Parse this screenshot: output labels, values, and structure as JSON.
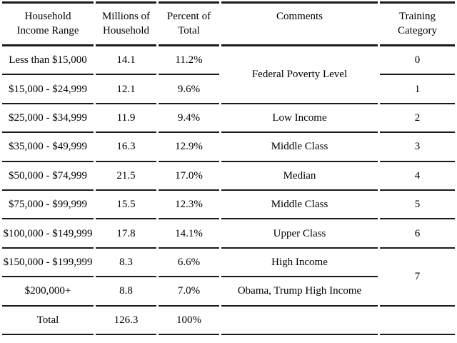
{
  "colors": {
    "line": "#1a1a1a",
    "text": "#000000",
    "background": "#ffffff"
  },
  "table": {
    "headers": [
      [
        "Household",
        "Income Range"
      ],
      [
        "Millions of",
        "Household"
      ],
      [
        "Percent of",
        "Total"
      ],
      [
        "Comments"
      ],
      [
        "Training",
        "Category"
      ]
    ],
    "rows": [
      {
        "range": "Less than $15,000",
        "millions": "14.1",
        "percent": "11.2%",
        "comment": "Federal Poverty Level",
        "category": "0"
      },
      {
        "range": "$15,000 - $24,999",
        "millions": "12.1",
        "percent": "9.6%",
        "category": "1"
      },
      {
        "range": "$25,000 - $34,999",
        "millions": "11.9",
        "percent": "9.4%",
        "comment": "Low Income",
        "category": "2"
      },
      {
        "range": "$35,000 - $49,999",
        "millions": "16.3",
        "percent": "12.9%",
        "comment": "Middle Class",
        "category": "3"
      },
      {
        "range": "$50,000 - $74,999",
        "millions": "21.5",
        "percent": "17.0%",
        "comment": "Median",
        "category": "4"
      },
      {
        "range": "$75,000 - $99,999",
        "millions": "15.5",
        "percent": "12.3%",
        "comment": "Middle Class",
        "category": "5"
      },
      {
        "range": "$100,000 - $149,999",
        "millions": "17.8",
        "percent": "14.1%",
        "comment": "Upper Class",
        "category": "6"
      },
      {
        "range": "$150,000 - $199,999",
        "millions": "8.3",
        "percent": "6.6%",
        "comment": "High Income",
        "category": "7"
      },
      {
        "range": "$200,000+",
        "millions": "8.8",
        "percent": "7.0%",
        "comment": "Obama, Trump High Income"
      },
      {
        "range": "Total",
        "millions": "126.3",
        "percent": "100%",
        "comment": "",
        "category": ""
      }
    ]
  }
}
